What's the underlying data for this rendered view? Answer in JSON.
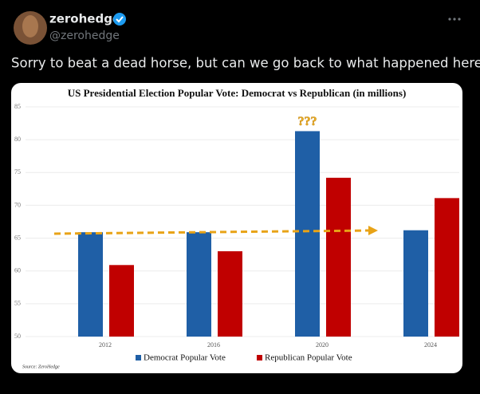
{
  "tweet": {
    "name": "zerohedge",
    "handle": "@zerohedge",
    "text": "Sorry to beat a dead horse, but can we go back to what happened here?"
  },
  "chart_data": {
    "type": "bar",
    "title": "US Presidential Election Popular Vote: Democrat vs  Republican (in millions)",
    "categories": [
      "2012",
      "2016",
      "2020",
      "2024"
    ],
    "series": [
      {
        "name": "Democrat Popular Vote",
        "color": "#1f5fa6",
        "values": [
          65.9,
          65.9,
          81.3,
          66.2
        ]
      },
      {
        "name": "Republican Popular Vote",
        "color": "#c00000",
        "values": [
          60.9,
          63.0,
          74.2,
          71.1
        ]
      }
    ],
    "ylim": [
      50,
      85
    ],
    "yticks": [
      50,
      55,
      60,
      65,
      70,
      75,
      80,
      85
    ],
    "grid": true,
    "legend": "bottom",
    "annotation": "???",
    "source": "Source: ZeroHedge"
  }
}
